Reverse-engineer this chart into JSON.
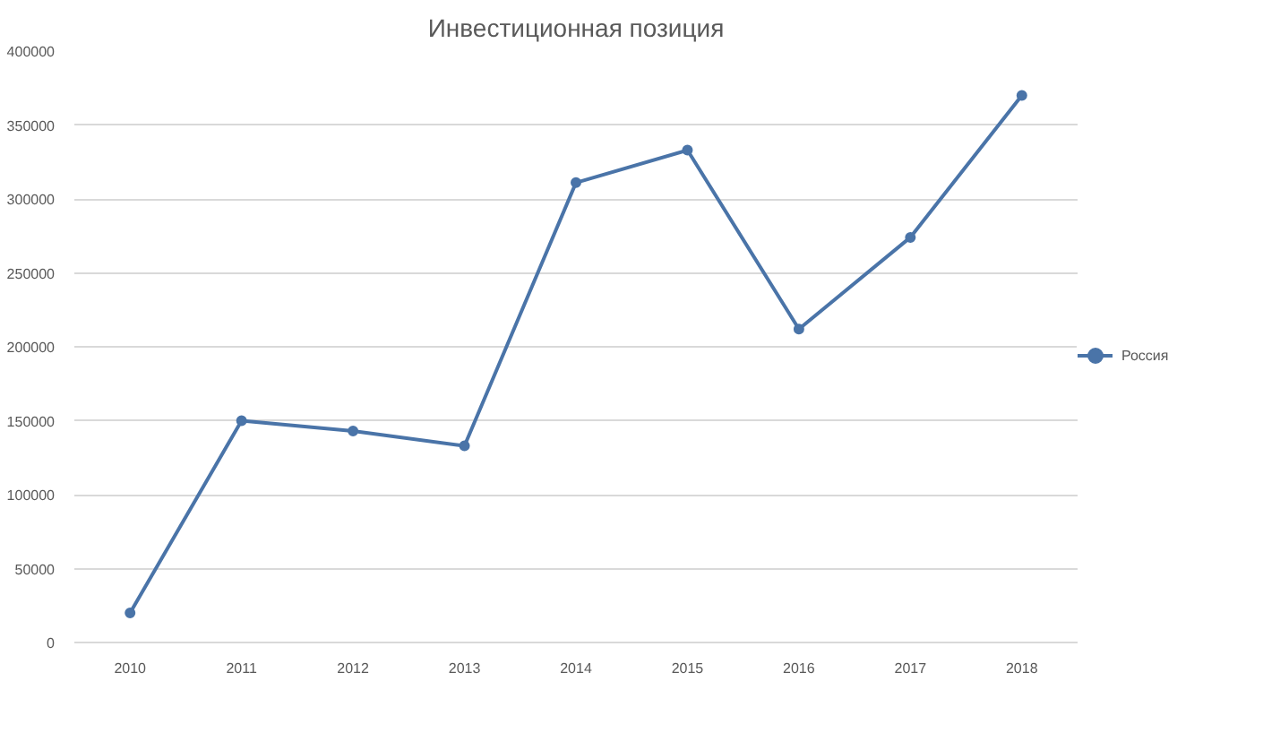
{
  "chart_data": {
    "type": "line",
    "title": "Инвестиционная позиция",
    "categories": [
      "2010",
      "2011",
      "2012",
      "2013",
      "2014",
      "2015",
      "2016",
      "2017",
      "2018"
    ],
    "series": [
      {
        "name": "Россия",
        "color": "#4a74a8",
        "values": [
          20000,
          150000,
          143000,
          133000,
          311000,
          333000,
          212000,
          274000,
          370000
        ]
      }
    ],
    "ylim": [
      0,
      400000
    ],
    "yticks": [
      0,
      50000,
      100000,
      150000,
      200000,
      250000,
      300000,
      350000,
      400000
    ],
    "grid": "y",
    "legend": "right",
    "marker": "circle",
    "line_style": "solid"
  }
}
